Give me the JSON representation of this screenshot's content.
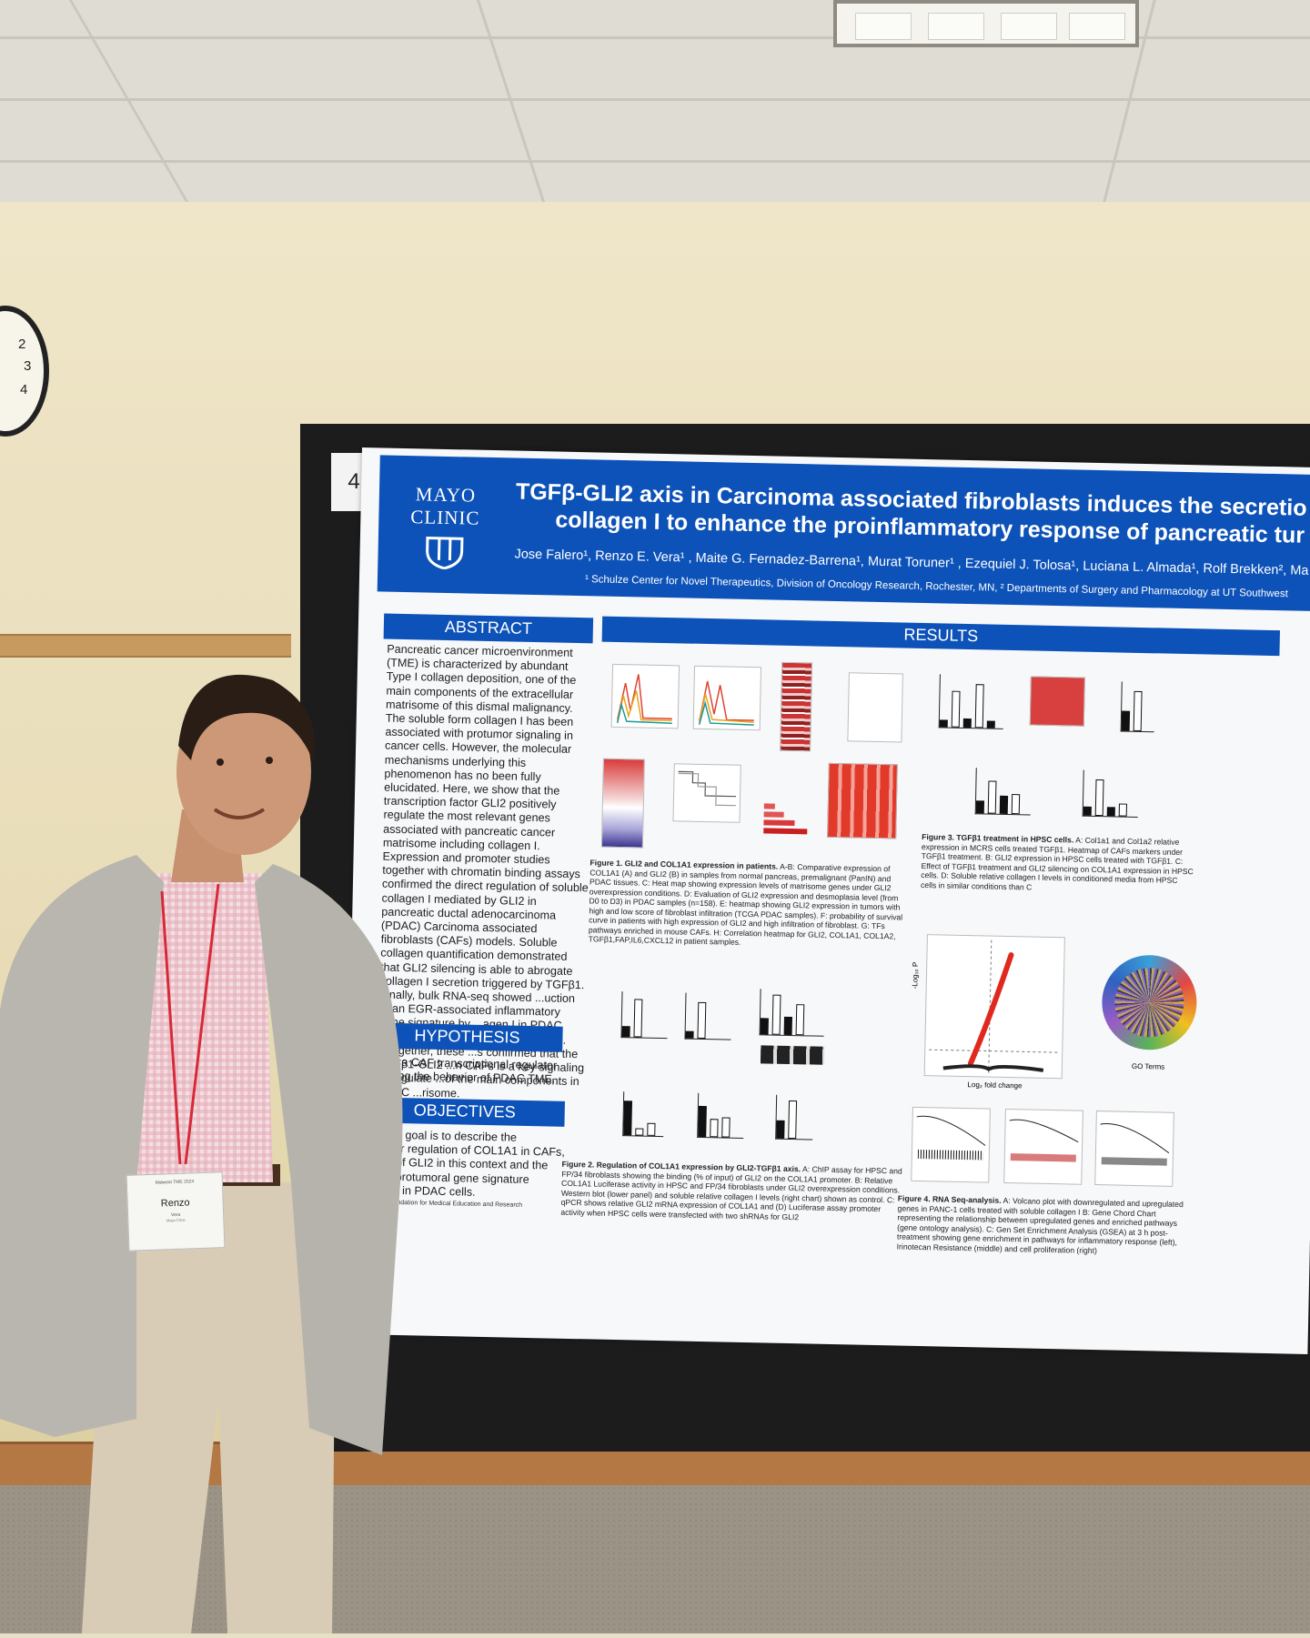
{
  "poster": {
    "board_number": "4",
    "logo": "MAYO CLINIC",
    "title_line1": "TGFβ-GLI2 axis in Carcinoma associated fibroblasts induces the secretio",
    "title_line2": "collagen I to enhance the proinflammatory response of pancreatic tur",
    "authors": "Jose Falero¹, Renzo E. Vera¹ , Maite G. Fernadez-Barrena¹, Murat Toruner¹ , Ezequiel J. Tolosa¹, Luciana L. Almada¹, Rolf Brekken², Ma",
    "affiliation": "¹ Schulze Center for Novel Therapeutics, Division of Oncology Research, Rochester, MN, ² Departments of Surgery and Pharmacology at UT Southwest",
    "sections": {
      "abstract_heading": "ABSTRACT",
      "abstract_text": "Pancreatic cancer microenvironment (TME) is characterized by abundant Type I collagen deposition, one of the main components of the extracellular matrisome of this dismal malignancy. The soluble form collagen I has been associated with protumor signaling in cancer cells. However, the molecular mechanisms underlying this phenomenon has no been fully elucidated. Here, we show that the transcription factor GLI2 positively regulate the most relevant genes associated with pancreatic cancer matrisome including collagen I. Expression and promoter studies together with chromatin binding assays confirmed the direct regulation of soluble collagen I mediated by GLI2 in pancreatic ductal adenocarcinoma (PDAC) Carcinoma associated fibroblasts (CAFs) models. Soluble collagen quantification demonstrated that GLI2 silencing is able to abrogate collagen I secretion triggered by TGFβ1. Finally, bulk RNA-seq showed ...uction of an EGR-associated inflammatory gene signature by ...agen I in PDAC tumor cells in a time-...ndent fashion. Altogether, these ...s confirmed that the TGFβ1-GLI2 ...n CAFs is a key signaling to regulate ...of the main components in PDAC ...risome.",
      "hypothesis_heading": "HYPOTHESIS",
      "hypothesis_text": "...2 is a CAF transcriptional regulator ...rolling the behavior of PDAC TME.",
      "objectives_heading": "OBJECTIVES",
      "objectives_text": "Our main goal is to describe the molecular regulation of COL1A1 in CAFs, the role of GLI2 in this context and the specific protumoral gene signature triggered in PDAC cells.",
      "results_heading": "RESULTS",
      "copyright": "© 2024 Mayo Foundation for Medical Education and Research"
    },
    "figure_captions": {
      "fig1_title": "Figure 1. GLI2 and COL1A1 expression in patients.",
      "fig1": "A-B: Comparative expression of COL1A1 (A) and GLI2 (B) in samples from normal pancreas, premalignant (PanIN) and PDAC tissues. C: Heat map showing expression levels of matrisome genes under GLI2 overexpression conditions. D: Evaluation of GLI2 expression and desmoplasia level (from D0 to D3) in PDAC samples (n=158). E: heatmap showing GLI2 expression in tumors with high and low score of fibroblast infiltration (TCGA PDAC samples). F: probability of survival curve in patients with high expression of GLI2 and high infiltration of fibroblast. G: TFs pathways enriched in mouse CAFs. H: Correlation heatmap for GLI2, COL1A1, COL1A2, TGFβ1,FAP,IL6,CXCL12 in patient samples.",
      "fig2_title": "Figure 2. Regulation of COL1A1 expression by GLI2-TGFβ1 axis.",
      "fig2": "A: ChIP assay for HPSC and FP/34 fibroblasts showing the binding (% of input) of GLI2 on the COL1A1 promoter. B: Relative COL1A1 Luciferase activity in HPSC and FP/34 fibroblasts under GLI2 overexpression conditions. Western blot (lower panel) and soluble relative collagen I levels (right chart) shown as control. C: qPCR shows relative GLI2 mRNA expression of COL1A1 and (D) Luciferase assay promoter activity when HPSC cells were transfected with two shRNAs for GLI2",
      "fig3_title": "Figure 3. TGFβ1 treatment in HPSC cells.",
      "fig3": "A: Col1a1 and Col1a2 relative expression in MCRS cells treated TGFβ1. Heatmap of CAFs markers under TGFβ1 treatment. B: GLI2 expression in HPSC cells treated with TGFβ1. C: Effect of TGFβ1 treatment and GLI2 silencing on COL1A1 expression in HPSC cells. D: Soluble relative collagen I levels in conditioned media from HPSC cells in similar conditions than C",
      "fig4_title": "Figure 4. RNA Seq-analysis.",
      "fig4": "A: Volcano plot with downregulated and upregulated genes in PANC-1 cells treated with soluble collagen I B: Gene Chord Chart representing the relationship between upregulated genes and enriched pathways (gene ontology analysis). C: Gen Set Enrichment Analysis (GSEA) at 3 h post-treatment showing gene enrichment in pathways for inflammatory response (left), Irinotecan Resistance (middle) and cell proliferation (right)",
      "volcano_xlabel": "Log₂ fold change",
      "volcano_ylabel": "-Log₁₀ P",
      "go_terms": "GO Terms"
    }
  },
  "badge": {
    "event": "Midwest TME 2024",
    "name": "Renzo",
    "surname": "Vera",
    "org": "Mayo Clinic"
  },
  "clock_numbers": [
    "2",
    "3",
    "4"
  ],
  "colors": {
    "poster_blue": "#0d52b8",
    "board": "#1c1c1c",
    "wall": "#e8dcb7",
    "baseboard": "#b47845"
  }
}
